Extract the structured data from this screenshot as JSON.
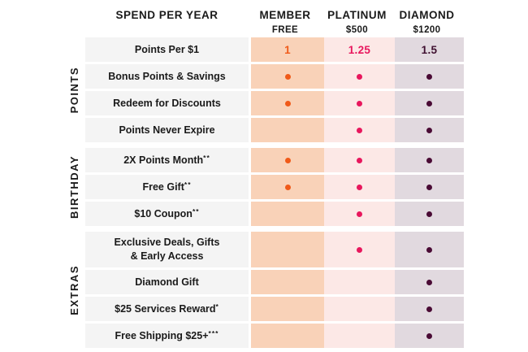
{
  "chart_data": {
    "type": "table",
    "title": "SPEND PER YEAR",
    "column_headers": [
      {
        "name": "MEMBER",
        "price": "FREE"
      },
      {
        "name": "PLATINUM",
        "price": "$500"
      },
      {
        "name": "DIAMOND",
        "price": "$1200"
      }
    ],
    "row_groups": [
      {
        "group": "POINTS",
        "rows": [
          {
            "label": "Points Per $1",
            "values": [
              "1",
              "1.25",
              "1.5"
            ]
          },
          {
            "label": "Bonus Points & Savings",
            "included": [
              true,
              true,
              true
            ]
          },
          {
            "label": "Redeem for Discounts",
            "included": [
              true,
              true,
              true
            ]
          },
          {
            "label": "Points Never Expire",
            "included": [
              false,
              true,
              true
            ]
          }
        ]
      },
      {
        "group": "BIRTHDAY",
        "rows": [
          {
            "label": "2X Points Month**",
            "included": [
              true,
              true,
              true
            ]
          },
          {
            "label": "Free Gift**",
            "included": [
              true,
              true,
              true
            ]
          },
          {
            "label": "$10 Coupon**",
            "included": [
              false,
              true,
              true
            ]
          }
        ]
      },
      {
        "group": "EXTRAS",
        "rows": [
          {
            "label": "Exclusive Deals, Gifts\n& Early Access",
            "included": [
              false,
              true,
              true
            ],
            "tall": true
          },
          {
            "label": "Diamond Gift",
            "included": [
              false,
              false,
              true
            ]
          },
          {
            "label": "$25 Services Reward*",
            "included": [
              false,
              false,
              true
            ]
          },
          {
            "label": "Free Shipping $25+***",
            "included": [
              false,
              false,
              true
            ]
          }
        ]
      }
    ]
  },
  "colors": {
    "member_bg": "#F9D2B8",
    "member_accent": "#F05A19",
    "platinum_bg": "#FCE8E6",
    "platinum_accent": "#E8175D",
    "diamond_bg": "#E1D9DF",
    "diamond_accent": "#4A0B35",
    "diamond_value_text": "#3F1030",
    "row_label_bg": "#F4F4F4",
    "heading_text": "#1A1A1A"
  }
}
